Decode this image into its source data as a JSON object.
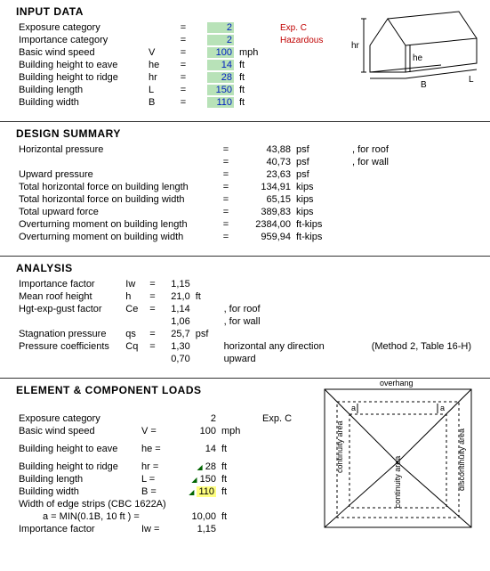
{
  "input": {
    "heading": "INPUT DATA",
    "rows": [
      {
        "label": "Exposure category",
        "sym": "",
        "val": "2",
        "unit": "",
        "note": "Exp. C",
        "green": true
      },
      {
        "label": "Importance category",
        "sym": "",
        "val": "2",
        "unit": "",
        "note": "Hazardous",
        "green": true
      },
      {
        "label": "Basic wind speed",
        "sym": "V",
        "val": "100",
        "unit": "mph",
        "green": true
      },
      {
        "label": "Building height to eave",
        "sym": "he",
        "val": "14",
        "unit": "ft",
        "green": true
      },
      {
        "label": "Building height to ridge",
        "sym": "hr",
        "val": "28",
        "unit": "ft",
        "green": true
      },
      {
        "label": "Building length",
        "sym": "L",
        "val": "150",
        "unit": "ft",
        "green": true
      },
      {
        "label": "Building width",
        "sym": "B",
        "val": "110",
        "unit": "ft",
        "green": true
      }
    ],
    "svg_labels": {
      "hr": "hr",
      "he": "he",
      "B": "B",
      "L": "L"
    }
  },
  "summary": {
    "heading": "DESIGN SUMMARY",
    "rows": [
      {
        "label": "Horizontal pressure",
        "val": "43,88",
        "unit": "psf",
        "note": ", for roof"
      },
      {
        "label": "",
        "val": "40,73",
        "unit": "psf",
        "note": ", for wall"
      },
      {
        "label": "Upward pressure",
        "val": "23,63",
        "unit": "psf"
      },
      {
        "label": "Total horizontal force on building length",
        "val": "134,91",
        "unit": "kips"
      },
      {
        "label": "Total horizontal force on building width",
        "val": "65,15",
        "unit": "kips"
      },
      {
        "label": "Total upward force",
        "val": "389,83",
        "unit": "kips"
      },
      {
        "label": "Overturning moment on building length",
        "val": "2384,00",
        "unit": "ft-kips"
      },
      {
        "label": "Overturning moment on building width",
        "val": "959,94",
        "unit": "ft-kips"
      }
    ]
  },
  "analysis": {
    "heading": "ANALYSIS",
    "rows": [
      {
        "label": "Importance factor",
        "sym": "Iw",
        "val": "1,15",
        "unit": ""
      },
      {
        "label": "Mean roof height",
        "sym": "h",
        "val": "21,0",
        "unit": "ft"
      },
      {
        "label": "Hgt-exp-gust factor",
        "sym": "Ce",
        "val": "1,14",
        "unit": "",
        "note": ", for roof"
      },
      {
        "label": "",
        "sym": "",
        "val": "1,06",
        "unit": "",
        "note": ", for wall"
      },
      {
        "label": "Stagnation pressure",
        "sym": "qs",
        "val": "25,7",
        "unit": "psf"
      },
      {
        "label": "Pressure coefficients",
        "sym": "Cq",
        "val": "1,30",
        "unit": "",
        "note": "horizontal any direction",
        "extra": "(Method 2, Table 16-H)"
      },
      {
        "label": "",
        "sym": "",
        "val": "0,70",
        "unit": "",
        "note": "upward"
      }
    ]
  },
  "element": {
    "heading": "ELEMENT & COMPONENT LOADS",
    "rows": [
      {
        "label": "Exposure category",
        "sym": "",
        "val": "2",
        "unit": "",
        "note": "Exp. C"
      },
      {
        "label": "Basic wind speed",
        "sym": "V =",
        "val": "100",
        "unit": "mph"
      },
      {
        "label": "Building height to eave",
        "sym": "he =",
        "val": "14",
        "unit": "ft",
        "sub": "e"
      },
      {
        "label": "Building height to ridge",
        "sym": "hr =",
        "val": "28",
        "unit": "ft",
        "tri": true,
        "sub": "r"
      },
      {
        "label": "Building length",
        "sym": "L =",
        "val": "150",
        "unit": "ft",
        "tri": true
      },
      {
        "label": "Building width",
        "sym": "B =",
        "val": "110",
        "unit": "ft",
        "tri": true,
        "yellow": true
      },
      {
        "label": "Width of edge strips (CBC 1622A)",
        "colspan": true
      },
      {
        "label": "         a = MIN(0.1B, 10 ft ) =",
        "sym": "",
        "val": "10,00",
        "unit": "ft",
        "indent": true
      },
      {
        "label": "Importance factor",
        "sym": "Iw =",
        "val": "1,15",
        "unit": "",
        "cut": true
      }
    ],
    "svg_labels": {
      "overhang": "overhang",
      "cont": "continuity area",
      "disc": "discontinuity area",
      "a": "a"
    }
  },
  "colors": {
    "green_bg": "#b8e2b8",
    "yellow_bg": "#ffff80",
    "blue_text": "#0020c0",
    "red_text": "#c00000"
  }
}
